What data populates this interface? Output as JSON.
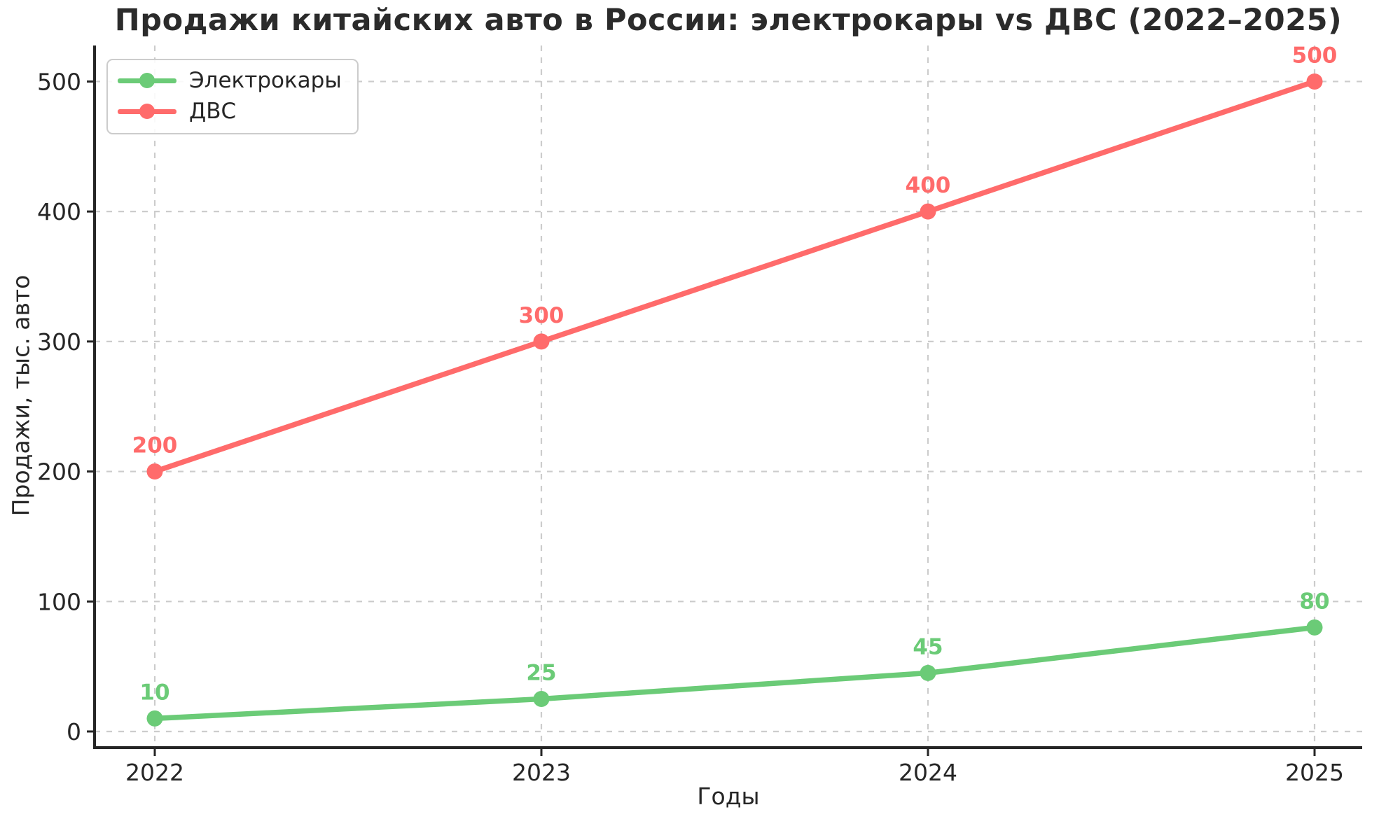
{
  "chart_data": {
    "type": "line",
    "title": "Продажи китайских авто в России: электрокары vs ДВС (2022–2025)",
    "xlabel": "Годы",
    "ylabel": "Продажи, тыс. авто",
    "categories": [
      "2022",
      "2023",
      "2024",
      "2025"
    ],
    "series": [
      {
        "name": "Электрокары",
        "color": "#6BCB77",
        "values": [
          10,
          25,
          45,
          80
        ]
      },
      {
        "name": "ДВС",
        "color": "#FF6B6B",
        "values": [
          200,
          300,
          400,
          500
        ]
      }
    ],
    "yticks": [
      0,
      100,
      200,
      300,
      400,
      500
    ],
    "ylim": [
      0,
      500
    ],
    "grid": true,
    "grid_style": "dashed",
    "data_labels": true,
    "legend_position": "upper left",
    "colors": {
      "grid": "#cccccc",
      "axis": "#262626",
      "text": "#262626",
      "background": "#ffffff"
    }
  }
}
